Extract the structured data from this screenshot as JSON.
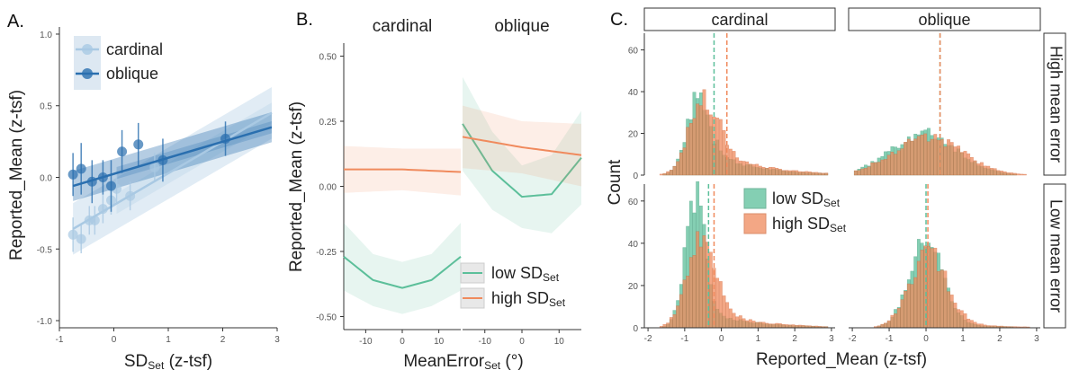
{
  "chart_data": [
    {
      "panel": "A.",
      "type": "scatter",
      "xlabel": "SD",
      "xlabel_sub": "Set",
      "xlabel_suffix": " (z-tsf)",
      "ylabel": "Reported_Mean (z-tsf)",
      "xlim": [
        -1,
        3
      ],
      "ylim": [
        -1.05,
        1.05
      ],
      "xticks": [
        -1,
        0,
        1,
        2,
        3
      ],
      "yticks": [
        -1.0,
        -0.5,
        0.0,
        0.5,
        1.0
      ],
      "ytick_labels": [
        "-1.0",
        "-0.5",
        "0.0",
        "0.5",
        "1.0"
      ],
      "legend": [
        "cardinal",
        "oblique"
      ],
      "legend_position": "top-left",
      "colors": {
        "cardinal": "#a9c9e3",
        "oblique": "#2a6faf"
      },
      "series": [
        {
          "name": "cardinal",
          "points": [
            [
              -0.75,
              -0.4
            ],
            [
              -0.6,
              -0.43
            ],
            [
              -0.45,
              -0.3
            ],
            [
              -0.35,
              -0.3
            ],
            [
              -0.2,
              -0.22
            ],
            [
              -0.05,
              -0.16
            ],
            [
              0.3,
              -0.13
            ],
            [
              0.75,
              0.07
            ],
            [
              0.05,
              -0.08
            ]
          ],
          "err": [
            0.12,
            0.1,
            0.1,
            0.1,
            0.1,
            0.1,
            0.1,
            0.1,
            0.1
          ],
          "fit": [
            [
              -0.75,
              -0.36
            ],
            [
              2.9,
              0.45
            ]
          ],
          "ci": 0.12
        },
        {
          "name": "oblique",
          "points": [
            [
              -0.75,
              0.02
            ],
            [
              -0.6,
              0.06
            ],
            [
              -0.4,
              -0.03
            ],
            [
              -0.2,
              0.0
            ],
            [
              -0.05,
              -0.06
            ],
            [
              0.15,
              0.18
            ],
            [
              0.45,
              0.23
            ],
            [
              0.9,
              0.12
            ],
            [
              2.05,
              0.27
            ]
          ],
          "err": [
            0.15,
            0.18,
            0.15,
            0.12,
            0.18,
            0.15,
            0.15,
            0.15,
            0.12
          ],
          "fit": [
            [
              -0.75,
              -0.06
            ],
            [
              2.9,
              0.35
            ]
          ],
          "ci": 0.07
        }
      ]
    },
    {
      "panel": "B.",
      "type": "line",
      "facets": [
        "cardinal",
        "oblique"
      ],
      "xlabel": "MeanError",
      "xlabel_sub": "Set",
      "xlabel_suffix": " (°)",
      "ylabel": "Reported_Mean (z-tsf)",
      "xlim": [
        -16,
        16
      ],
      "ylim": [
        -0.55,
        0.55
      ],
      "xticks": [
        -10,
        0,
        10
      ],
      "yticks": [
        -0.5,
        -0.25,
        0.0,
        0.25,
        0.5
      ],
      "ytick_labels": [
        "-0.50",
        "-0.25",
        "0.00",
        "0.25",
        "0.50"
      ],
      "legend": [
        "low SD",
        "high SD"
      ],
      "legend_sub": "Set",
      "legend_position": "bottom-right",
      "colors": {
        "low": "#5cbf9a",
        "high": "#f08a5d"
      },
      "cardinal": {
        "low": {
          "x": [
            -16,
            -8,
            0,
            8,
            16
          ],
          "y": [
            -0.27,
            -0.36,
            -0.39,
            -0.36,
            -0.27
          ],
          "ci": [
            0.13,
            0.1,
            0.1,
            0.1,
            0.13
          ]
        },
        "high": {
          "x": [
            -16,
            0,
            16
          ],
          "y": [
            0.065,
            0.065,
            0.055
          ],
          "ci": [
            0.09,
            0.08,
            0.09
          ]
        }
      },
      "oblique": {
        "low": {
          "x": [
            -16,
            -8,
            0,
            8,
            16
          ],
          "y": [
            0.24,
            0.06,
            -0.04,
            -0.03,
            0.11
          ],
          "ci": [
            0.18,
            0.15,
            0.12,
            0.15,
            0.18
          ]
        },
        "high": {
          "x": [
            -16,
            0,
            16
          ],
          "y": [
            0.19,
            0.15,
            0.12
          ],
          "ci": [
            0.12,
            0.1,
            0.12
          ]
        }
      }
    },
    {
      "panel": "C.",
      "type": "histogram",
      "columns": [
        "cardinal",
        "oblique"
      ],
      "rows": [
        "High mean error",
        "Low mean error"
      ],
      "xlabel": "Reported_Mean (z-tsf)",
      "ylabel": "Count",
      "xlim": [
        -2.1,
        3.1
      ],
      "xticks": [
        -2,
        -1,
        0,
        1,
        2,
        3
      ],
      "yticks": [
        0,
        20,
        40,
        60
      ],
      "ylim": [
        0,
        68
      ],
      "legend": [
        "low SD",
        "high SD"
      ],
      "legend_sub": "Set",
      "legend_position": "center",
      "colors": {
        "low": "#5cbf9a",
        "high": "#f08a5d"
      },
      "panels": [
        {
          "row": 0,
          "col": 0,
          "low_mode": -0.65,
          "low_sd": 0.32,
          "low_peak": 38,
          "high_mode": -0.55,
          "high_sd": 0.38,
          "high_peak": 36,
          "tail": 8,
          "vline_low": -0.2,
          "vline_high": 0.15
        },
        {
          "row": 0,
          "col": 1,
          "low_mode": -0.1,
          "low_sd": 0.9,
          "low_peak": 20,
          "high_mode": 0.0,
          "high_sd": 0.95,
          "high_peak": 18,
          "tail": 0,
          "vline_low": 0.38,
          "vline_high": 0.38
        },
        {
          "row": 1,
          "col": 0,
          "low_mode": -0.75,
          "low_sd": 0.28,
          "low_peak": 62,
          "high_mode": -0.6,
          "high_sd": 0.38,
          "high_peak": 42,
          "tail": 5,
          "vline_low": -0.35,
          "vline_high": -0.2
        },
        {
          "row": 1,
          "col": 1,
          "low_mode": -0.05,
          "low_sd": 0.45,
          "low_peak": 40,
          "high_mode": 0.0,
          "high_sd": 0.5,
          "high_peak": 34,
          "tail": 3,
          "vline_low": 0.0,
          "vline_high": 0.05
        }
      ]
    }
  ]
}
